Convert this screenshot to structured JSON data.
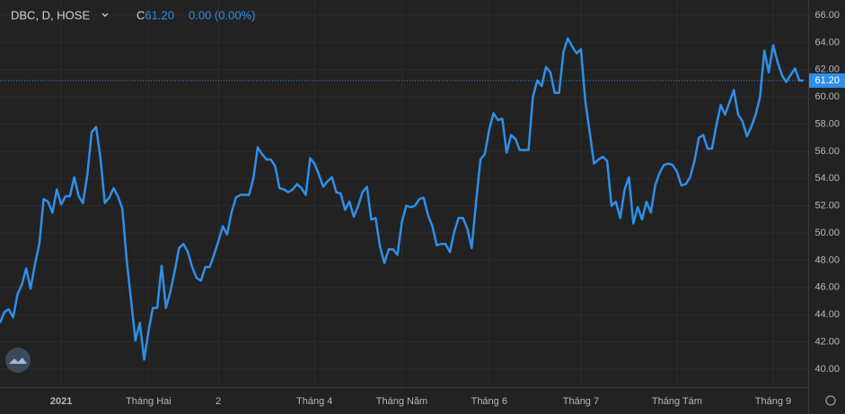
{
  "chart_data": {
    "type": "line",
    "symbol": "DBC, D, HOSE",
    "close_prefix": "C",
    "close": {
      "value": 61.2,
      "label": "61.20"
    },
    "change": "0.00 (0.00%)",
    "categories": [
      null,
      null,
      null,
      null,
      null,
      null,
      null,
      null,
      null,
      null,
      null,
      null,
      null,
      null,
      "2021",
      null,
      null,
      null,
      null,
      null,
      null,
      null,
      null,
      null,
      null,
      null,
      null,
      null,
      null,
      null,
      null,
      null,
      null,
      null,
      "Tháng Hai",
      null,
      null,
      null,
      null,
      null,
      null,
      null,
      null,
      null,
      null,
      null,
      null,
      null,
      null,
      null,
      "2",
      null,
      null,
      null,
      null,
      null,
      null,
      null,
      null,
      null,
      null,
      null,
      null,
      null,
      null,
      null,
      null,
      null,
      null,
      null,
      null,
      null,
      "Tháng 4",
      null,
      null,
      null,
      null,
      null,
      null,
      null,
      null,
      null,
      null,
      null,
      null,
      null,
      null,
      null,
      null,
      null,
      null,
      null,
      "Tháng Năm",
      null,
      null,
      null,
      null,
      null,
      null,
      null,
      null,
      null,
      null,
      null,
      null,
      null,
      null,
      null,
      null,
      null,
      null,
      null,
      "Tháng 6",
      null,
      null,
      null,
      null,
      null,
      null,
      null,
      null,
      null,
      null,
      null,
      null,
      null,
      null,
      null,
      null,
      null,
      null,
      null,
      null,
      "Tháng 7",
      null,
      null,
      null,
      null,
      null,
      null,
      null,
      null,
      null,
      null,
      null,
      null,
      null,
      null,
      null,
      null,
      null,
      null,
      null,
      null,
      null,
      "Tháng Tám",
      null,
      null,
      null,
      null,
      null,
      null,
      null,
      null,
      null,
      null,
      null,
      null,
      null,
      null,
      null,
      null,
      null,
      null,
      null,
      null,
      null,
      "Tháng 9",
      null,
      null,
      null,
      null,
      null,
      null,
      null
    ],
    "series": [
      {
        "name": "DBC",
        "color": "#2f8fe8",
        "values": [
          43.4,
          44.2,
          44.4,
          43.8,
          45.5,
          46.2,
          47.4,
          45.9,
          47.7,
          49.2,
          52.5,
          52.3,
          51.5,
          53.2,
          52.1,
          52.7,
          52.7,
          54.1,
          52.7,
          52.2,
          54.3,
          57.4,
          57.8,
          55.5,
          52.2,
          52.6,
          53.3,
          52.7,
          51.8,
          48.0,
          45.1,
          42.1,
          43.4,
          40.7,
          42.8,
          44.5,
          44.5,
          47.6,
          44.5,
          45.7,
          47.2,
          48.9,
          49.2,
          48.6,
          47.5,
          46.7,
          46.5,
          47.5,
          47.5,
          48.4,
          49.4,
          50.5,
          49.9,
          51.5,
          52.6,
          52.8,
          52.8,
          52.8,
          54.0,
          56.3,
          55.8,
          55.4,
          55.4,
          54.9,
          53.3,
          53.2,
          53.0,
          53.2,
          53.6,
          53.3,
          52.8,
          55.5,
          55.1,
          54.3,
          53.4,
          53.8,
          54.1,
          53.0,
          52.9,
          51.7,
          52.3,
          51.2,
          52.0,
          53.0,
          53.4,
          51.0,
          51.1,
          49.0,
          47.8,
          48.8,
          48.8,
          48.4,
          50.8,
          52.0,
          51.9,
          52.0,
          52.5,
          52.6,
          51.3,
          50.5,
          49.1,
          49.2,
          49.2,
          48.6,
          50.1,
          51.1,
          51.1,
          50.3,
          48.9,
          52.3,
          55.4,
          55.8,
          57.6,
          58.8,
          58.3,
          58.4,
          55.9,
          57.2,
          56.9,
          56.1,
          56.1,
          56.1,
          60.0,
          61.2,
          60.8,
          62.2,
          61.8,
          60.3,
          60.3,
          63.3,
          64.3,
          63.7,
          63.2,
          63.5,
          59.7,
          57.4,
          55.1,
          55.4,
          55.6,
          55.3,
          52.0,
          52.3,
          51.1,
          53.2,
          54.1,
          50.7,
          51.9,
          51.0,
          52.3,
          51.5,
          53.5,
          54.4,
          55.0,
          55.1,
          55.0,
          54.5,
          53.5,
          53.6,
          54.1,
          55.3,
          57.0,
          57.2,
          56.2,
          56.2,
          57.9,
          59.4,
          58.7,
          59.6,
          60.5,
          58.7,
          58.2,
          57.1,
          57.8,
          58.7,
          60.0,
          63.4,
          61.8,
          63.8,
          62.6,
          61.6,
          61.1,
          61.6,
          62.1,
          61.2,
          61.2
        ]
      }
    ],
    "ylim": [
      38.68,
      67.12
    ],
    "yticks": [
      {
        "value": 40,
        "label": "40.00"
      },
      {
        "value": 42,
        "label": "42.00"
      },
      {
        "value": 44,
        "label": "44.00"
      },
      {
        "value": 46,
        "label": "46.00"
      },
      {
        "value": 48,
        "label": "48.00"
      },
      {
        "value": 50,
        "label": "50.00"
      },
      {
        "value": 52,
        "label": "52.00"
      },
      {
        "value": 54,
        "label": "54.00"
      },
      {
        "value": 56,
        "label": "56.00"
      },
      {
        "value": 58,
        "label": "58.00"
      },
      {
        "value": 60,
        "label": "60.00"
      },
      {
        "value": 62,
        "label": "62.00"
      },
      {
        "value": 64,
        "label": "64.00"
      },
      {
        "value": 66,
        "label": "66.00"
      }
    ],
    "grid": true
  }
}
